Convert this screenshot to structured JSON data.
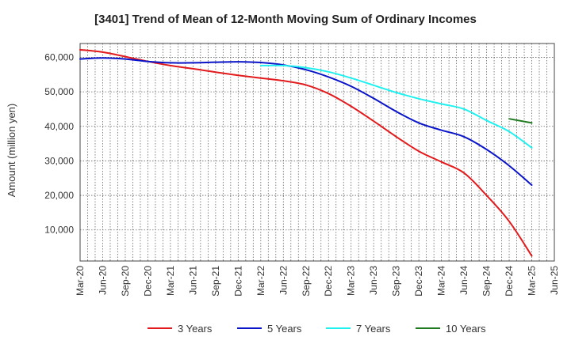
{
  "chart_data": {
    "type": "line",
    "title": "[3401]  Trend of Mean of 12-Month Moving Sum of Ordinary Incomes",
    "xlabel": "",
    "ylabel": "Amount (million yen)",
    "ylim": [
      1000,
      64000
    ],
    "yticks": [
      10000,
      20000,
      30000,
      40000,
      50000,
      60000
    ],
    "ytick_labels": [
      "10,000",
      "20,000",
      "30,000",
      "40,000",
      "50,000",
      "60,000"
    ],
    "xticks": [
      "Mar-20",
      "Jun-20",
      "Sep-20",
      "Dec-20",
      "Mar-21",
      "Jun-21",
      "Sep-21",
      "Dec-21",
      "Mar-22",
      "Jun-22",
      "Sep-22",
      "Dec-22",
      "Mar-23",
      "Jun-23",
      "Sep-23",
      "Dec-23",
      "Mar-24",
      "Jun-24",
      "Sep-24",
      "Dec-24",
      "Mar-25",
      "Jun-25"
    ],
    "grid": true,
    "legend_position": "bottom",
    "series": [
      {
        "name": "3 Years",
        "color": "#e31a1c",
        "x": [
          "Mar-20",
          "Jun-20",
          "Sep-20",
          "Dec-20",
          "Mar-21",
          "Jun-21",
          "Sep-21",
          "Dec-21",
          "Mar-22",
          "Jun-22",
          "Sep-22",
          "Dec-22",
          "Mar-23",
          "Jun-23",
          "Sep-23",
          "Dec-23",
          "Mar-24",
          "Jun-24",
          "Sep-24",
          "Dec-24",
          "Mar-25"
        ],
        "values": [
          62200,
          61500,
          60200,
          58800,
          57600,
          56700,
          55700,
          54800,
          54000,
          53200,
          52000,
          49500,
          45800,
          41500,
          37000,
          32800,
          29700,
          26500,
          20000,
          12500,
          2500
        ]
      },
      {
        "name": "5 Years",
        "color": "#0a14c8",
        "x": [
          "Mar-20",
          "Jun-20",
          "Sep-20",
          "Dec-20",
          "Mar-21",
          "Jun-21",
          "Sep-21",
          "Dec-21",
          "Mar-22",
          "Jun-22",
          "Sep-22",
          "Dec-22",
          "Mar-23",
          "Jun-23",
          "Sep-23",
          "Dec-23",
          "Mar-24",
          "Jun-24",
          "Sep-24",
          "Dec-24",
          "Mar-25"
        ],
        "values": [
          59500,
          59800,
          59500,
          58800,
          58400,
          58400,
          58600,
          58700,
          58500,
          57800,
          56400,
          54300,
          51600,
          48100,
          44300,
          41000,
          38900,
          37000,
          33300,
          28600,
          23000
        ]
      },
      {
        "name": "7 Years",
        "color": "#1ff0f0",
        "x": [
          "Mar-22",
          "Jun-22",
          "Sep-22",
          "Dec-22",
          "Mar-23",
          "Jun-23",
          "Sep-23",
          "Dec-23",
          "Mar-24",
          "Jun-24",
          "Sep-24",
          "Dec-24",
          "Mar-25"
        ],
        "values": [
          57600,
          57600,
          57000,
          55800,
          54000,
          51900,
          49800,
          48000,
          46500,
          45000,
          41700,
          38500,
          33800
        ]
      },
      {
        "name": "10 Years",
        "color": "#1f7a1f",
        "x": [
          "Dec-24",
          "Mar-25"
        ],
        "values": [
          42200,
          41000
        ]
      }
    ]
  }
}
